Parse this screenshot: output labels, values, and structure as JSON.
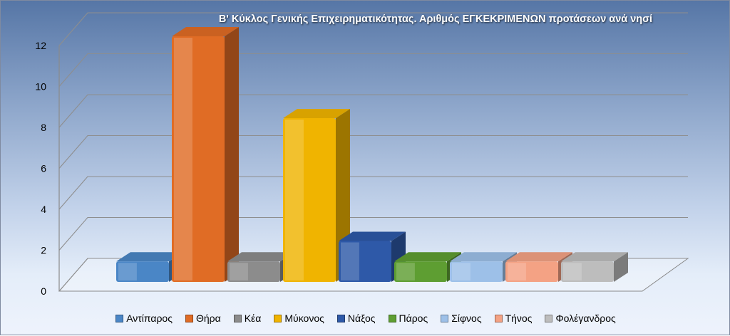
{
  "chart_data": {
    "type": "bar",
    "title": "Β' Κύκλος Γενικής Επιχειρηματικότητας. Αριθμός ΕΓΚΕΚΡΙΜΕΝΩΝ προτάσεων ανά νησί",
    "categories": [
      "Αντίπαρος",
      "Θήρα",
      "Κέα",
      "Μύκονος",
      "Νάξος",
      "Πάρος",
      "Σίφνος",
      "Τήνος",
      "Φολέγανδρος"
    ],
    "values": [
      1,
      12,
      1,
      8,
      2,
      1,
      1,
      1,
      1
    ],
    "colors": [
      "#4a86c6",
      "#e06c25",
      "#8c8c8c",
      "#f0b400",
      "#2e59a8",
      "#5e9e32",
      "#9dc0e8",
      "#f4a284",
      "#bdbdbd"
    ],
    "ylim": [
      0,
      12
    ],
    "yticks": [
      0,
      2,
      4,
      6,
      8,
      10,
      12
    ],
    "grid": true,
    "legend": "bottom"
  }
}
